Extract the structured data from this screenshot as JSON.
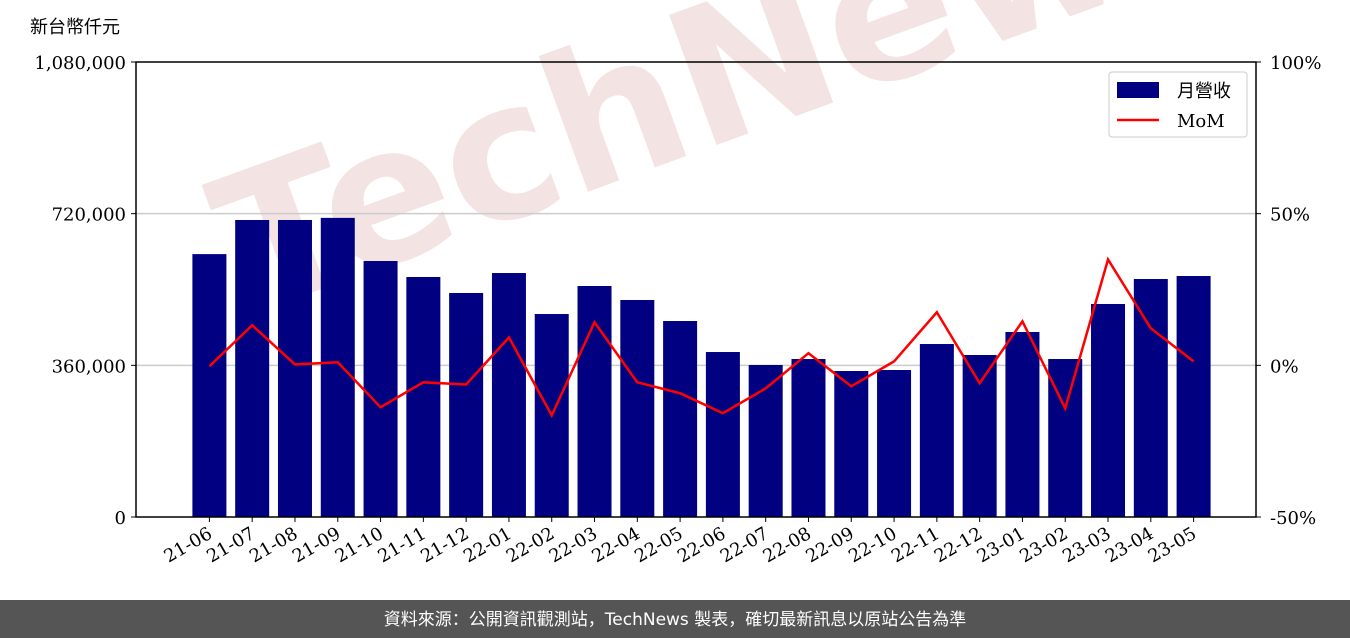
{
  "chart_data": {
    "type": "bar-line",
    "unit_label": "新台幣仟元",
    "watermark": "TechNews",
    "footer": "資料來源：公開資訊觀測站，TechNews 製表，確切最新訊息以原站公告為準",
    "categories": [
      "21-06",
      "21-07",
      "21-08",
      "21-09",
      "21-10",
      "21-11",
      "21-12",
      "22-01",
      "22-02",
      "22-03",
      "22-04",
      "22-05",
      "22-06",
      "22-07",
      "22-08",
      "22-09",
      "22-10",
      "22-11",
      "22-12",
      "23-01",
      "23-02",
      "23-03",
      "23-04",
      "23-05"
    ],
    "series": [
      {
        "name": "月營收",
        "type": "bar",
        "color": "#000080",
        "values": [
          624000,
          705000,
          705000,
          710000,
          607600,
          569700,
          531700,
          579100,
          481800,
          548300,
          515100,
          465200,
          391600,
          360800,
          375000,
          346500,
          348900,
          410600,
          384500,
          439100,
          375000,
          505600,
          564900,
          572000
        ]
      },
      {
        "name": "MoM",
        "type": "line",
        "axis": "y2",
        "color": "#ff0000",
        "values": [
          -0.3,
          13.2,
          0.3,
          1.0,
          -13.8,
          -5.6,
          -6.3,
          9.2,
          -16.5,
          14.2,
          -5.6,
          -9.2,
          -15.8,
          -7.6,
          4.0,
          -6.9,
          1.3,
          17.5,
          -5.9,
          14.5,
          -14.2,
          34.9,
          12.2,
          1.3
        ]
      }
    ],
    "ylim": [
      0,
      1080000
    ],
    "yticks": [
      0,
      {
        "value": 360000,
        "label": "360,000"
      },
      {
        "value": 720000,
        "label": "720,000"
      },
      {
        "value": 1080000,
        "label": "1,080,000"
      }
    ],
    "y2lim": [
      -50,
      100
    ],
    "y2ticks": [
      {
        "value": -50,
        "label": "-50%"
      },
      {
        "value": 0,
        "label": "0%"
      },
      {
        "value": 50,
        "label": "50%"
      },
      {
        "value": 100,
        "label": "100%"
      }
    ],
    "grid": true,
    "legend": "upper right"
  }
}
